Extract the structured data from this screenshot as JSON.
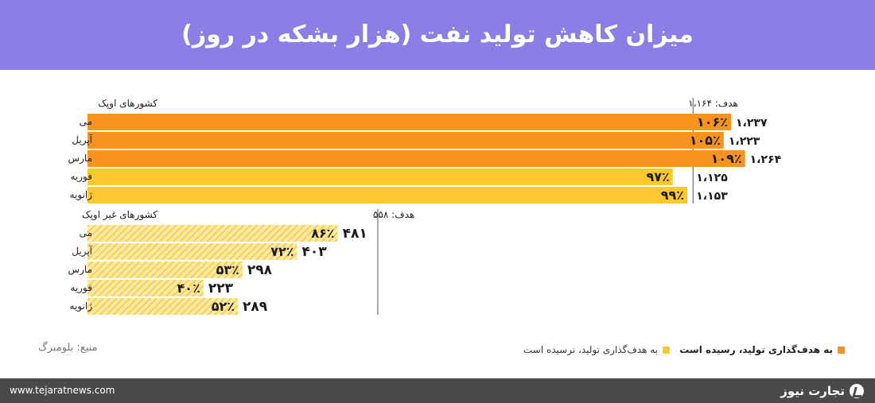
{
  "header": {
    "title": "میزان کاهش تولید نفت (هزار بشکه در روز)"
  },
  "colors": {
    "header_bg": "#8a7fe6",
    "reached": "#f7931e",
    "not_reached": "#fcc72f",
    "hatch_light": "#fde9a8",
    "footer_bg": "#4a4a4a"
  },
  "chart_data": {
    "type": "bar",
    "orientation": "horizontal",
    "panels": [
      {
        "name": "کشورهای اوپک",
        "target_label": "هدف: ۱،۱۶۴",
        "target": 1164,
        "categories": [
          "می",
          "آپریل",
          "مارس",
          "فوریه",
          "ژانویه"
        ],
        "values": [
          1237,
          1223,
          1264,
          1125,
          1153
        ],
        "value_labels": [
          "۱،۲۳۷",
          "۱،۲۲۳",
          "۱،۲۶۴",
          "۱،۱۲۵",
          "۱،۱۵۳"
        ],
        "percent_labels": [
          "۱۰۶٪",
          "۱۰۵٪",
          "۱۰۹٪",
          "۹۷٪",
          "۹۹٪"
        ],
        "percents": [
          106,
          105,
          109,
          97,
          99
        ],
        "reached": [
          true,
          true,
          true,
          false,
          false
        ]
      },
      {
        "name": "کشورهای غیر اوپک",
        "target_label": "هدف: ۵۵۸",
        "target": 558,
        "categories": [
          "می",
          "آپریل",
          "مارس",
          "فوریه",
          "ژانویه"
        ],
        "values": [
          481,
          403,
          298,
          223,
          289
        ],
        "value_labels": [
          "۴۸۱",
          "۴۰۳",
          "۲۹۸",
          "۲۲۳",
          "۲۸۹"
        ],
        "percent_labels": [
          "۸۶٪",
          "۷۲٪",
          "۵۳٪",
          "۴۰٪",
          "۵۲٪"
        ],
        "percents": [
          86,
          72,
          53,
          40,
          52
        ],
        "reached": [
          false,
          false,
          false,
          false,
          false
        ]
      }
    ]
  },
  "legend": {
    "reached": "به هدف‌گذاری تولید، رسیده است",
    "not_reached": "به هدف‌گذاری تولید، نرسیده است"
  },
  "source": "منبع: بلومبرگ",
  "footer": {
    "url": "www.tejaratnews.com",
    "brand": "تجارت نیوز"
  }
}
